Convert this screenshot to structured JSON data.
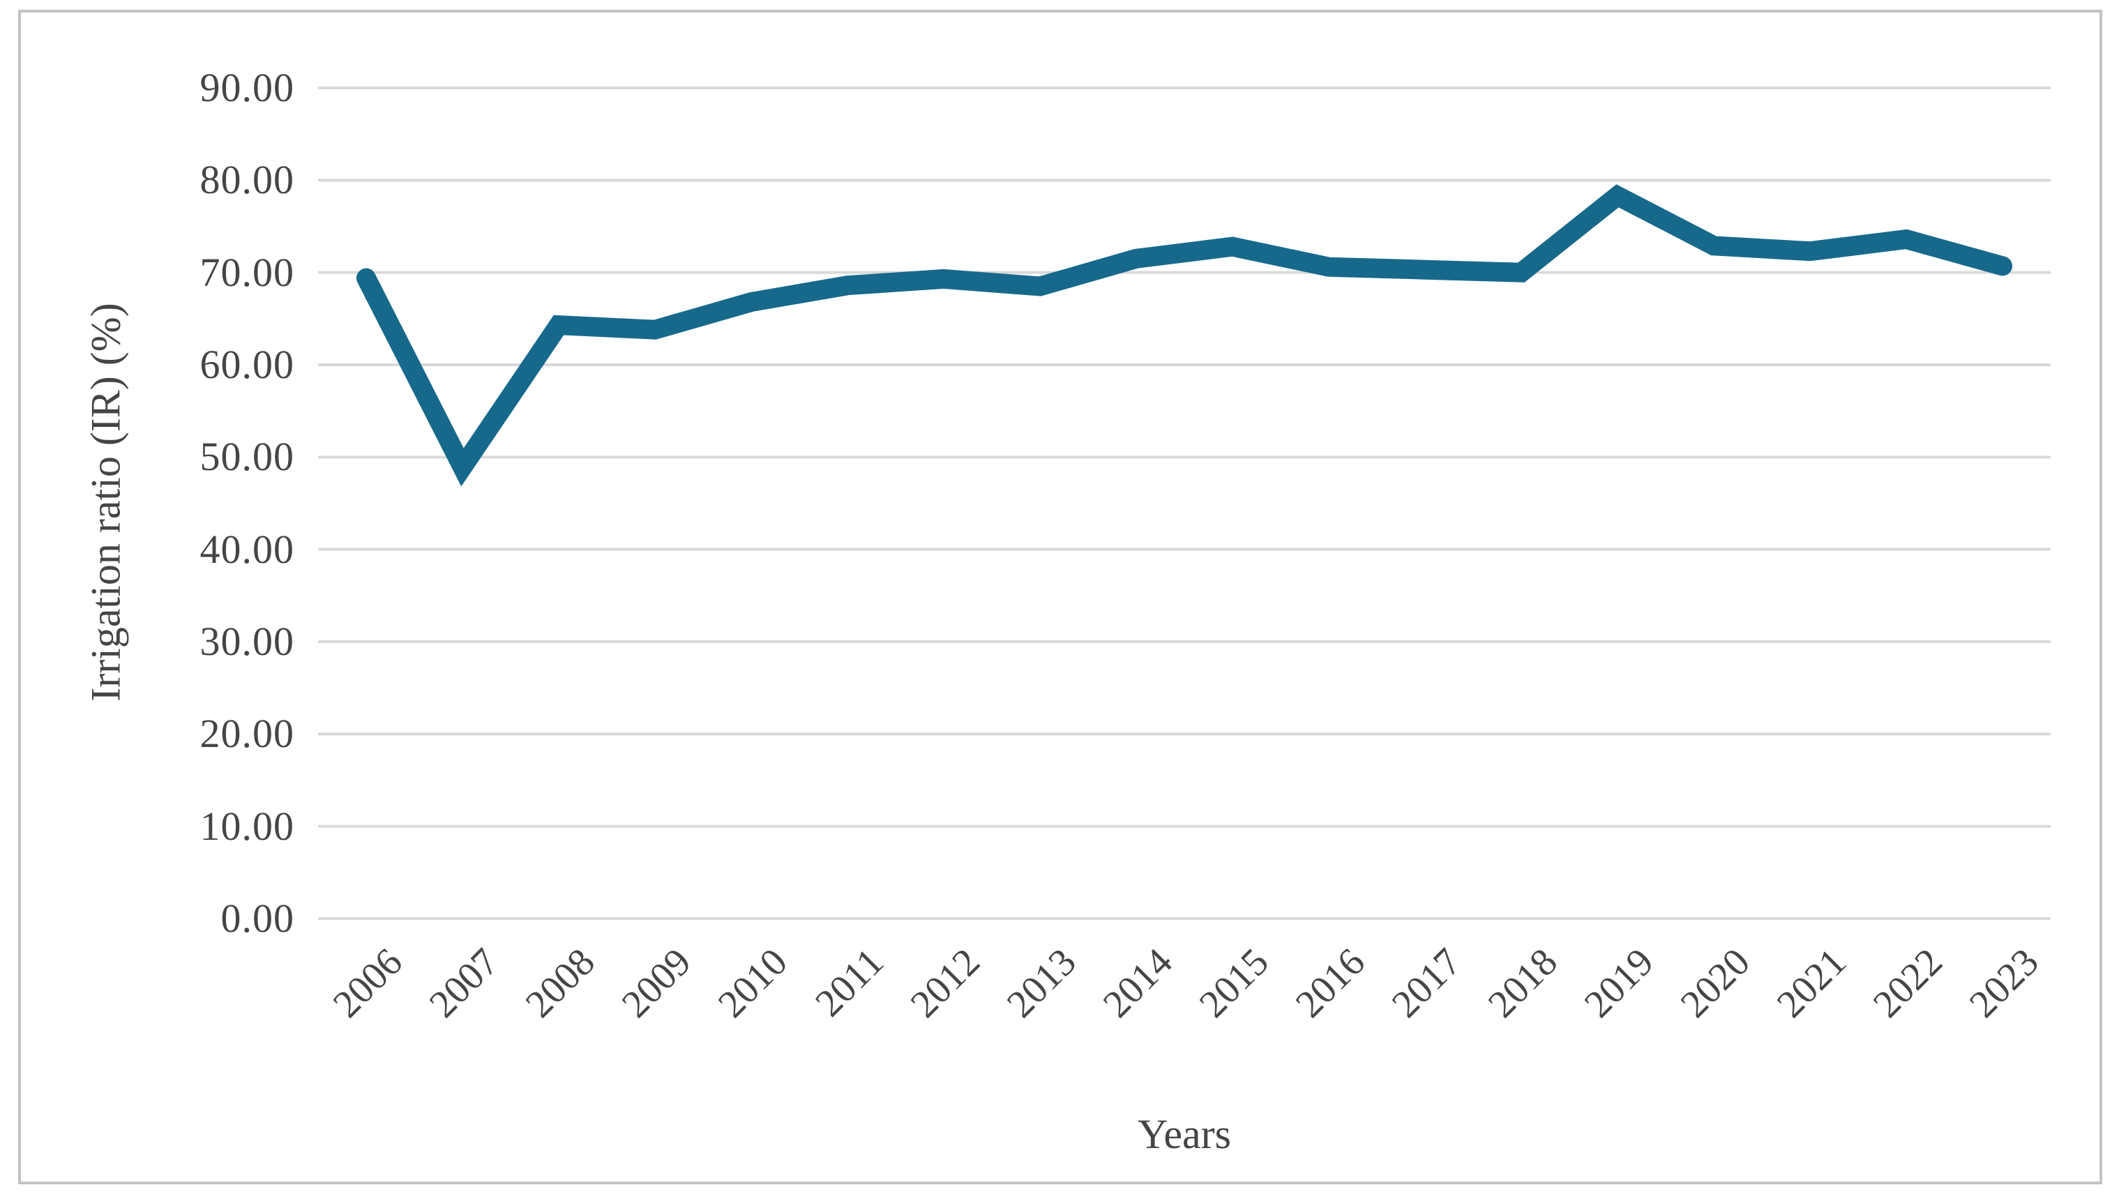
{
  "chart_data": {
    "type": "line",
    "categories": [
      "2006",
      "2007",
      "2008",
      "2009",
      "2010",
      "2011",
      "2012",
      "2013",
      "2014",
      "2015",
      "2016",
      "2017",
      "2018",
      "2019",
      "2020",
      "2021",
      "2022",
      "2023"
    ],
    "values": [
      69.4,
      48.9,
      64.3,
      63.8,
      66.8,
      68.6,
      69.3,
      68.5,
      71.5,
      72.8,
      70.6,
      70.3,
      70.0,
      78.3,
      72.9,
      72.3,
      73.6,
      70.7
    ],
    "title": "",
    "xlabel": "Years",
    "ylabel": "Irrigation ratio (IR) (%)",
    "ylim": [
      0,
      90
    ],
    "ytick_step": 10,
    "ytick_labels": [
      "0.00",
      "10.00",
      "20.00",
      "30.00",
      "40.00",
      "50.00",
      "60.00",
      "70.00",
      "80.00",
      "90.00"
    ],
    "grid": "horizontal",
    "legend": "none"
  },
  "colors": {
    "line": "#17698b",
    "gridline": "#d9d9d9",
    "text": "#454545",
    "frame_border": "#c3c3c3",
    "background": "#ffffff"
  }
}
